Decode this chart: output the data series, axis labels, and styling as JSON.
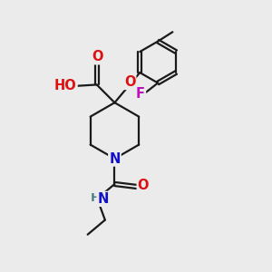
{
  "bg_color": "#ebebeb",
  "bond_color": "#1a1a1a",
  "bond_width": 1.6,
  "atom_colors": {
    "C": "#1a1a1a",
    "H": "#4a8080",
    "O": "#dd1111",
    "N": "#1111cc",
    "F": "#bb11bb"
  },
  "font_size": 10.5
}
